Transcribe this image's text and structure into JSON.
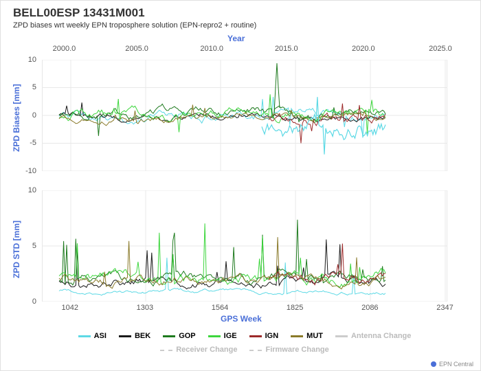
{
  "title": "BELL00ESP 13431M001",
  "subtitle": "ZPD biases wrt weekly EPN troposphere solution (EPN-repro2 + routine)",
  "top_axis": {
    "label": "Year",
    "ticks": [
      "2000.0",
      "2005.0",
      "2010.0",
      "2015.0",
      "2020.0",
      "2025.0"
    ],
    "positions": [
      0.055,
      0.234,
      0.419,
      0.603,
      0.793,
      0.983
    ]
  },
  "bottom_axis": {
    "label": "GPS Week",
    "ticks": [
      "1042",
      "1303",
      "1564",
      "1825",
      "2086",
      "2347"
    ],
    "positions": [
      0.072,
      0.257,
      0.442,
      0.627,
      0.812,
      0.997
    ]
  },
  "panel1": {
    "ylabel": "ZPD Biases [mm]",
    "ylim": [
      -10,
      10
    ],
    "yticks": [
      -10,
      -5,
      0,
      5,
      10
    ]
  },
  "panel2": {
    "ylabel": "ZPD STD [mm]",
    "ylim": [
      0,
      10
    ],
    "yticks": [
      0,
      5,
      10
    ]
  },
  "series": [
    {
      "name": "ASI",
      "color": "#5dd9e5"
    },
    {
      "name": "BEK",
      "color": "#1a1a1a"
    },
    {
      "name": "GOP",
      "color": "#1e7a1e"
    },
    {
      "name": "IGE",
      "color": "#3dd63d"
    },
    {
      "name": "IGN",
      "color": "#9c2a2a"
    },
    {
      "name": "MUT",
      "color": "#8a7a2a"
    }
  ],
  "change_series": [
    {
      "name": "Antenna Change",
      "color": "#cccccc",
      "dash": "solid"
    },
    {
      "name": "Receiver Change",
      "color": "#cccccc",
      "dash": "dashed"
    },
    {
      "name": "Firmware Change",
      "color": "#cccccc",
      "dash": "dashed"
    }
  ],
  "colors": {
    "grid": "#e8e8e8",
    "axis": "#888888",
    "label_blue": "#4a6fd8"
  },
  "footer": "EPN Central"
}
